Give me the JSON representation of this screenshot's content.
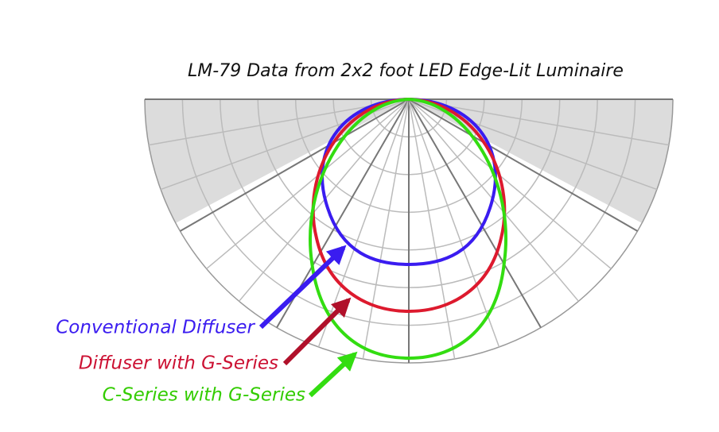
{
  "title": "LM-79 Data from 2x2 foot LED Edge-Lit Luminaire",
  "labels": [
    {
      "text": "Conventional Diffuser"
    },
    {
      "text": "Diffuser with G-Series"
    },
    {
      "text": "C-Series with G-Series"
    }
  ]
}
